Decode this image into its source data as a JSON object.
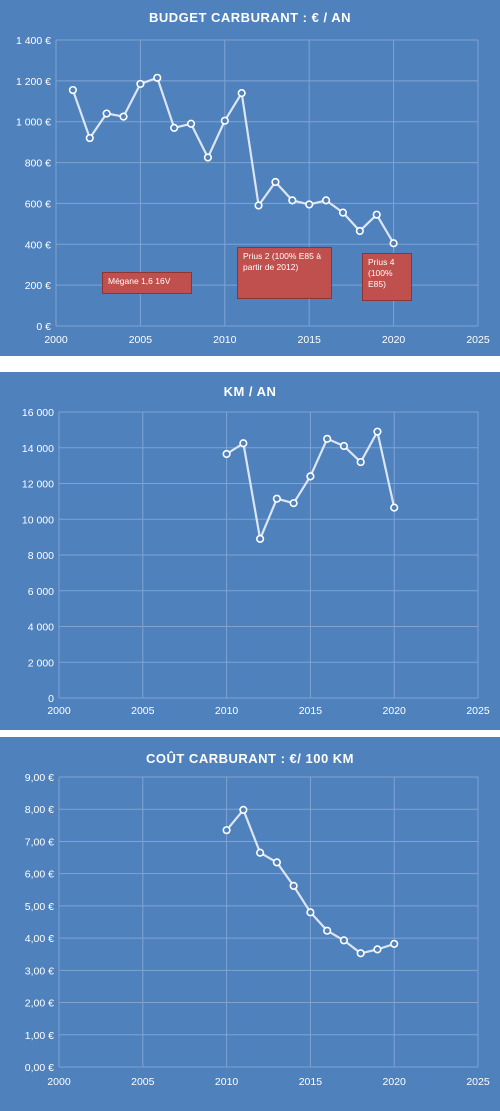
{
  "chart_data": [
    {
      "type": "line",
      "title": "BUDGET CARBURANT : € / AN",
      "xlabel": "",
      "ylabel": "",
      "xlim": [
        2000,
        2025
      ],
      "ylim": [
        0,
        1400
      ],
      "x_ticks": [
        "2000",
        "2005",
        "2010",
        "2015",
        "2020",
        "2025"
      ],
      "y_ticks": [
        "0 €",
        "200 €",
        "400 €",
        "600 €",
        "800 €",
        "1 000 €",
        "1 200 €",
        "1 400 €"
      ],
      "grid": true,
      "series": [
        {
          "x": [
            2001,
            2002,
            2003,
            2004,
            2005,
            2006,
            2007,
            2008,
            2009,
            2010,
            2011,
            2012,
            2013,
            2014,
            2015,
            2016,
            2017,
            2018,
            2019,
            2020
          ],
          "values": [
            1155,
            920,
            1040,
            1025,
            1185,
            1215,
            970,
            990,
            825,
            1005,
            1140,
            590,
            705,
            615,
            595,
            615,
            555,
            465,
            545,
            405
          ]
        }
      ],
      "annotations": [
        {
          "text": "Mégane 1,6 16V"
        },
        {
          "text": "Prius 2 (100% E85 à partir de 2012)"
        },
        {
          "text": "Prius 4 (100% E85)"
        }
      ]
    },
    {
      "type": "line",
      "title": "KM / AN",
      "xlabel": "",
      "ylabel": "",
      "xlim": [
        2000,
        2025
      ],
      "ylim": [
        0,
        16000
      ],
      "x_ticks": [
        "2000",
        "2005",
        "2010",
        "2015",
        "2020",
        "2025"
      ],
      "y_ticks": [
        "0",
        "2 000",
        "4 000",
        "6 000",
        "8 000",
        "10 000",
        "12 000",
        "14 000",
        "16 000"
      ],
      "grid": true,
      "series": [
        {
          "x": [
            2010,
            2011,
            2012,
            2013,
            2014,
            2015,
            2016,
            2017,
            2018,
            2019,
            2020
          ],
          "values": [
            13650,
            14250,
            8900,
            11150,
            10900,
            12400,
            14500,
            14100,
            13200,
            14900,
            10650
          ]
        }
      ]
    },
    {
      "type": "line",
      "title": "COÛT CARBURANT : €/ 100 KM",
      "xlabel": "",
      "ylabel": "",
      "xlim": [
        2000,
        2025
      ],
      "ylim": [
        0,
        9
      ],
      "x_ticks": [
        "2000",
        "2005",
        "2010",
        "2015",
        "2020",
        "2025"
      ],
      "y_ticks": [
        "0,00 €",
        "1,00 €",
        "2,00 €",
        "3,00 €",
        "4,00 €",
        "5,00 €",
        "6,00 €",
        "7,00 €",
        "8,00 €",
        "9,00 €"
      ],
      "grid": true,
      "series": [
        {
          "x": [
            2010,
            2011,
            2012,
            2013,
            2014,
            2015,
            2016,
            2017,
            2018,
            2019,
            2020
          ],
          "values": [
            7.35,
            7.98,
            6.65,
            6.35,
            5.62,
            4.8,
            4.23,
            3.93,
            3.53,
            3.65,
            3.82
          ]
        }
      ]
    }
  ],
  "colors": {
    "background": "#4f81bd",
    "gridline": "#7fa3d3",
    "line": "#dce6f2",
    "marker_fill": "#4f81bd",
    "marker_stroke": "#ffffff",
    "annotation_bg": "#c0504d",
    "text": "#ffffff"
  }
}
